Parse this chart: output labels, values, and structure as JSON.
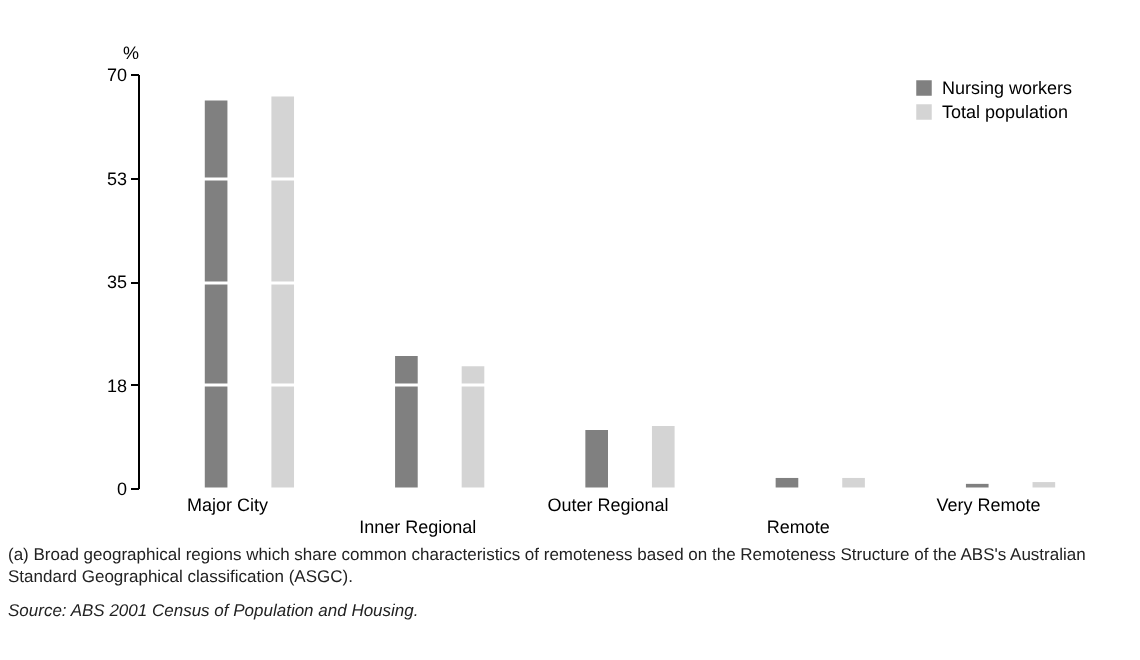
{
  "chart_data": {
    "type": "bar",
    "ylabel": "%",
    "categories": [
      "Major City",
      "Inner Regional",
      "Outer Regional",
      "Remote",
      "Very Remote"
    ],
    "series": [
      {
        "name": "Nursing workers",
        "color": "#808080",
        "values": [
          65.5,
          22.3,
          9.8,
          1.7,
          0.7
        ]
      },
      {
        "name": "Total population",
        "color": "#d4d4d4",
        "values": [
          66.2,
          20.6,
          10.5,
          1.7,
          1.0
        ]
      }
    ],
    "ylim": [
      0,
      70
    ],
    "yticks": [
      0,
      {
        "value": 17.5,
        "label": "18"
      },
      35,
      {
        "value": 52.5,
        "label": "53"
      },
      70
    ],
    "grid": "y",
    "legend": "top right",
    "annotations": [
      "(a) Broad geographical regions which share common characteristics of remoteness based on the Remoteness Structure of the ABS's Australian Standard Geographical classification (ASGC).",
      "Source: ABS 2001 Census of Population and Housing."
    ]
  }
}
